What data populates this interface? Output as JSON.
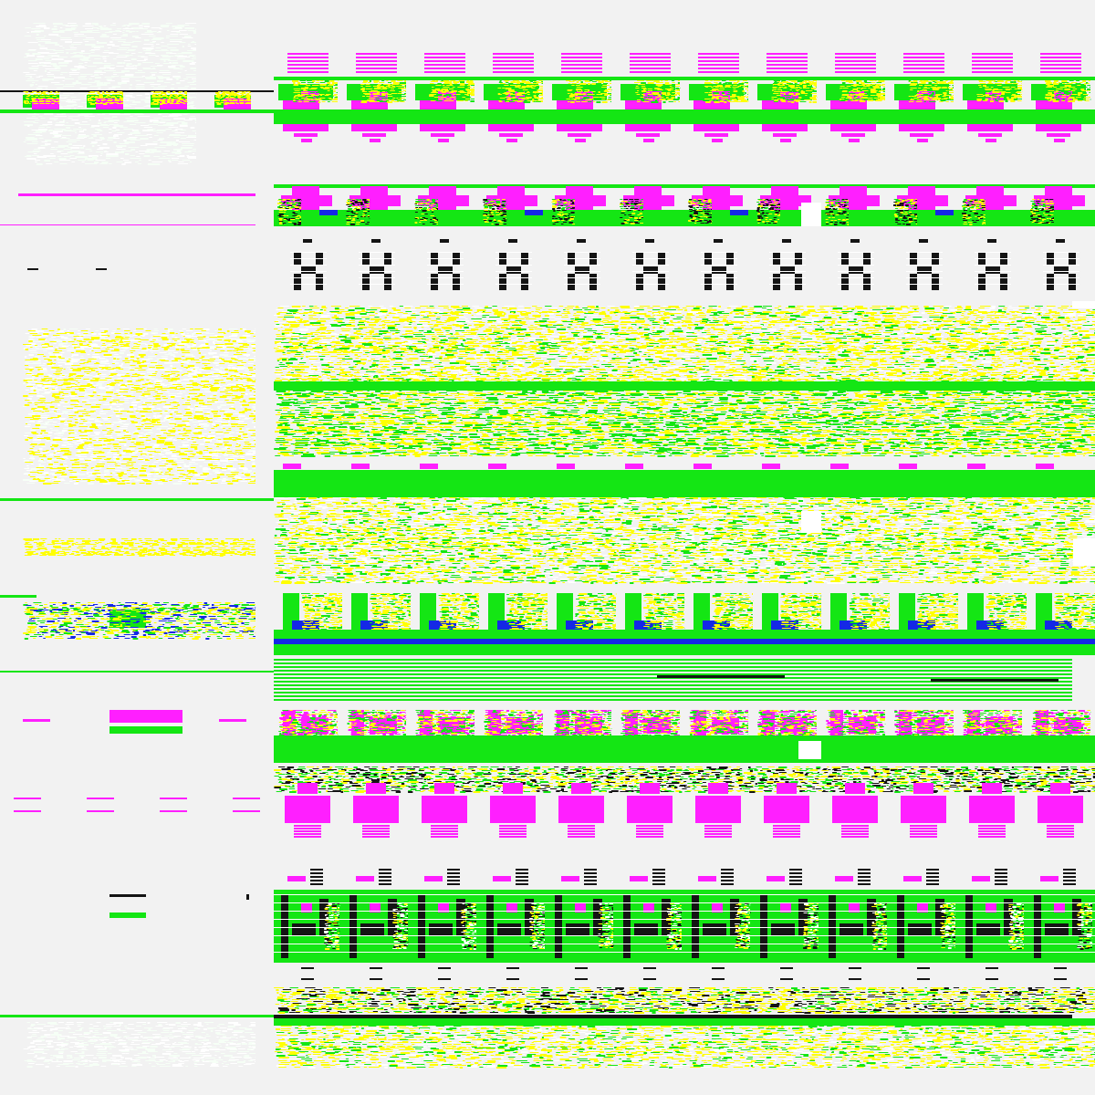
{
  "colors": {
    "background": "#f2f2f2",
    "green": "#14e614",
    "magenta": "#ff1fff",
    "yellow": "#ffff00",
    "black": "#141414",
    "blue": "#1428e6",
    "white": "#ffffff",
    "pale": "#f6fff6"
  },
  "pattern": {
    "description_free": true,
    "repeat_columns": 12,
    "bands": [
      "magenta-stripes",
      "green-magenta-wave",
      "magenta-stripes",
      "green-magenta-blocks",
      "black-x-glyphs",
      "yellow-green-noise",
      "green-magenta-wave",
      "yellow-green-noise",
      "green-blue-wave",
      "green-stripes",
      "magenta-green-wave",
      "magenta-cross-blocks",
      "black-green-glyphs",
      "black-bars",
      "yellow-green-noise"
    ]
  }
}
